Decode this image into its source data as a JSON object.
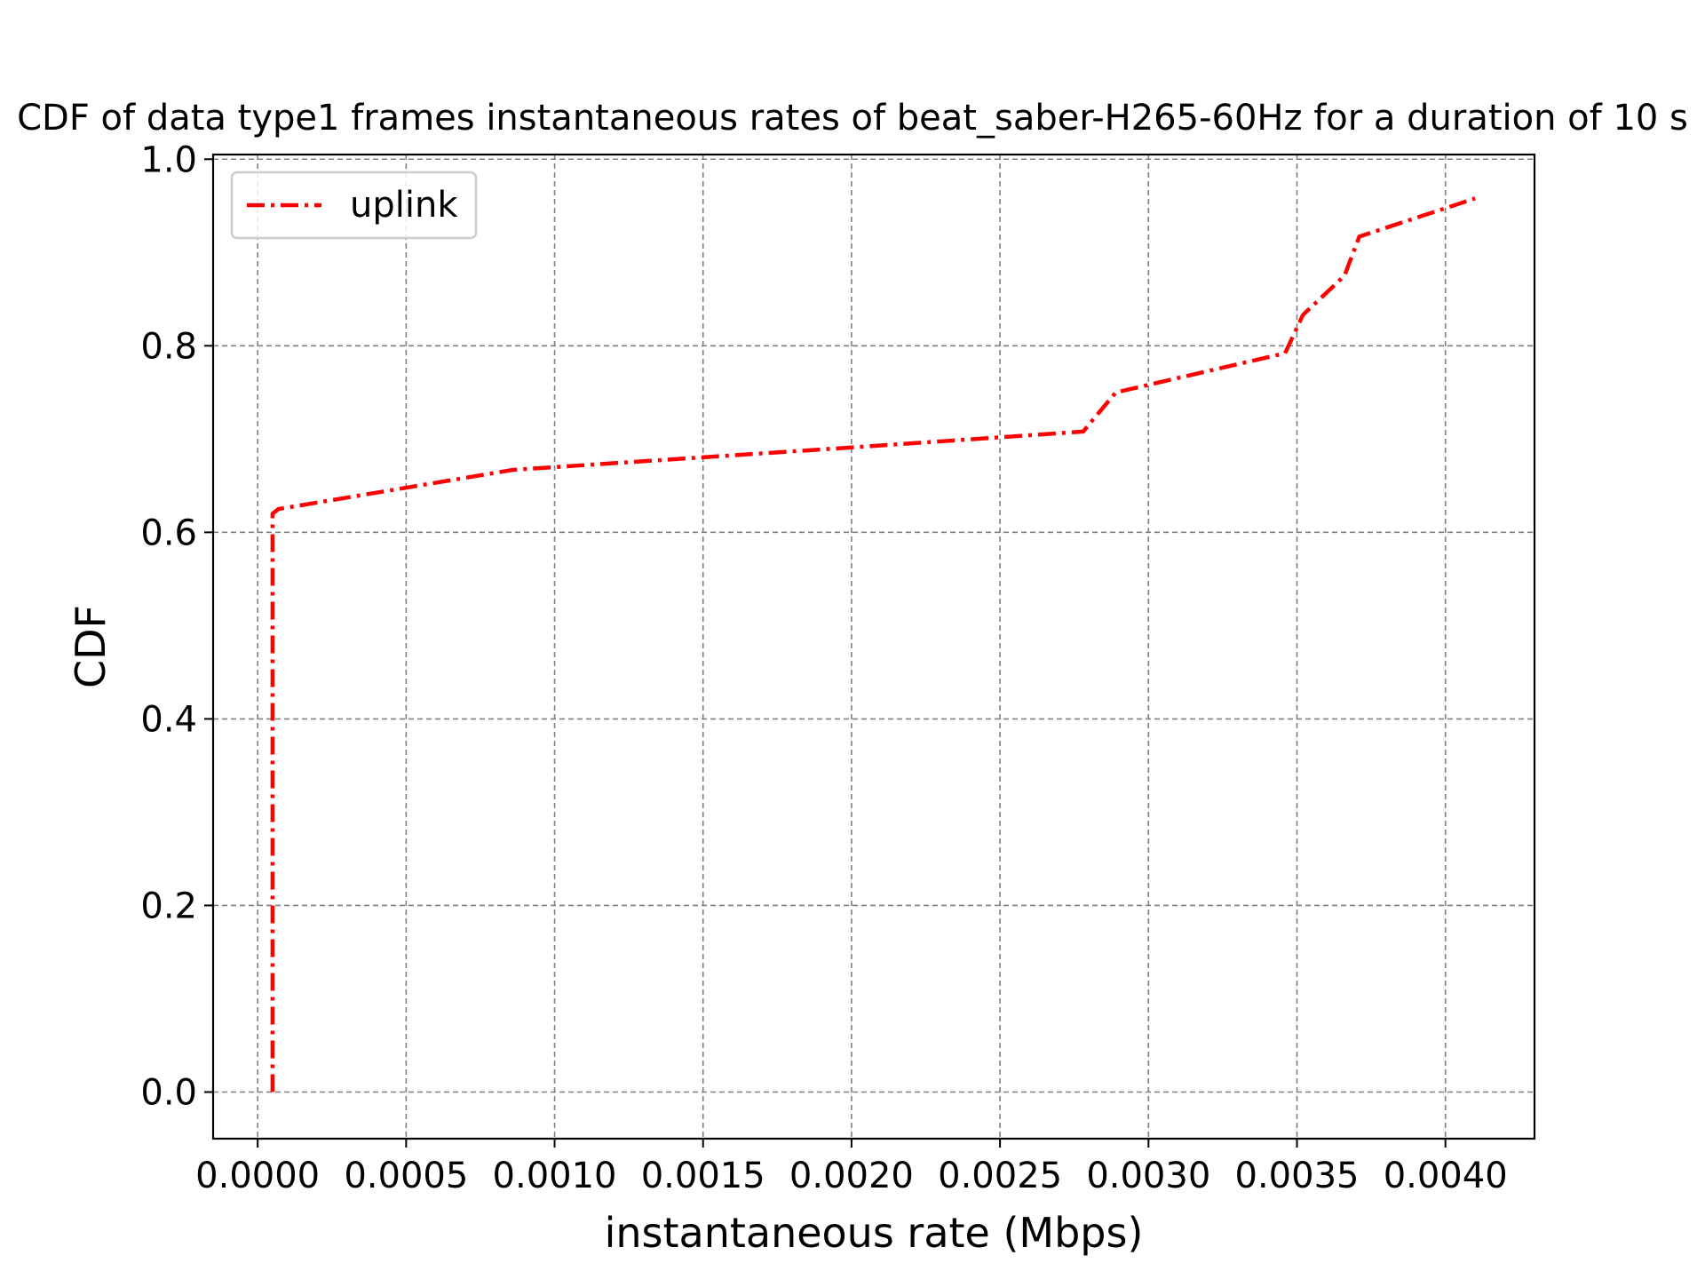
{
  "chart_data": {
    "type": "line",
    "title": "CDF of data type1 frames instantaneous rates of beat_saber-H265-60Hz for a duration of 10 s",
    "xlabel": "instantaneous rate (Mbps)",
    "ylabel": "CDF",
    "xlim": [
      -0.00015,
      0.0043
    ],
    "ylim": [
      -0.05,
      1.005
    ],
    "grid": true,
    "legend_position": "upper-left",
    "x_ticks": [
      0.0,
      0.0005,
      0.001,
      0.0015,
      0.002,
      0.0025,
      0.003,
      0.0035,
      0.004
    ],
    "x_tick_labels": [
      "0.0000",
      "0.0005",
      "0.0010",
      "0.0015",
      "0.0020",
      "0.0025",
      "0.0030",
      "0.0035",
      "0.0040"
    ],
    "y_ticks": [
      0.0,
      0.2,
      0.4,
      0.6,
      0.8,
      1.0
    ],
    "y_tick_labels": [
      "0.0",
      "0.2",
      "0.4",
      "0.6",
      "0.8",
      "1.0"
    ],
    "series": [
      {
        "name": "uplink",
        "color": "#ff0000",
        "line_style": "dash-dot",
        "x": [
          5e-05,
          5e-05,
          5e-05,
          7e-05,
          0.00086,
          0.002,
          0.00278,
          0.00289,
          0.00346,
          0.00352,
          0.00366,
          0.00371,
          0.0041
        ],
        "y": [
          0.0,
          0.61,
          0.62,
          0.625,
          0.667,
          0.691,
          0.708,
          0.75,
          0.792,
          0.833,
          0.875,
          0.917,
          0.958
        ]
      }
    ]
  }
}
